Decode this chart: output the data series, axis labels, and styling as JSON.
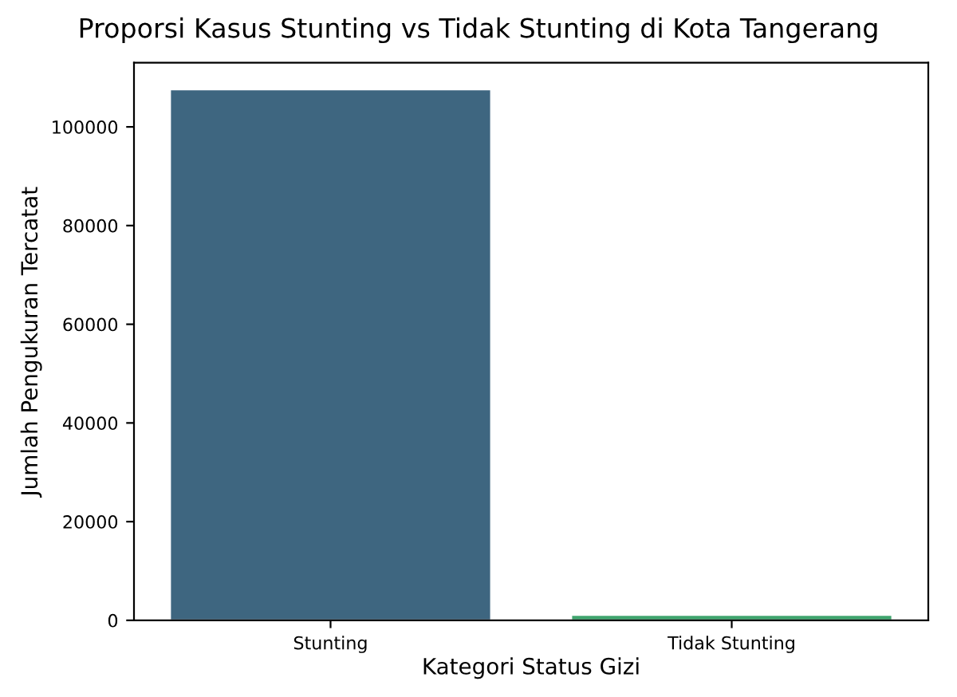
{
  "chart_data": {
    "type": "bar",
    "title": "Proporsi Kasus Stunting vs Tidak Stunting di Kota Tangerang",
    "xlabel": "Kategori Status Gizi",
    "ylabel": "Jumlah Pengukuran Tercatat",
    "categories": [
      "Stunting",
      "Tidak Stunting"
    ],
    "values": [
      107600,
      1100
    ],
    "colors": [
      "#3e6680",
      "#3fa56e"
    ],
    "ylim": [
      0,
      113000
    ],
    "yticks": [
      0,
      20000,
      40000,
      60000,
      80000,
      100000
    ],
    "grid": false
  }
}
